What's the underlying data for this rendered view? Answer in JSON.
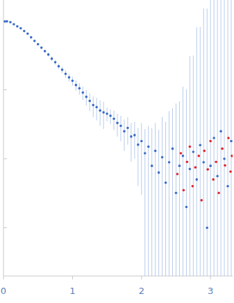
{
  "chart_data": {
    "type": "scatter",
    "xlim": [
      0,
      3.32
    ],
    "xticks": [
      0,
      1,
      2,
      3
    ],
    "ylim": [
      0.0002,
      2
    ],
    "yticks": [
      1,
      0.1,
      0.01,
      0.001
    ],
    "log": "y",
    "tick_labels": "x",
    "marker": "circle",
    "series": [
      {
        "color": "#3b6cc8",
        "x": [
          0.02,
          0.05,
          0.1,
          0.15,
          0.2,
          0.25,
          0.3,
          0.35,
          0.4,
          0.45,
          0.5,
          0.55,
          0.6,
          0.65,
          0.7,
          0.75,
          0.8,
          0.85,
          0.9,
          0.95,
          1.0,
          1.05,
          1.1,
          1.15,
          1.2,
          1.25,
          1.3,
          1.35,
          1.4,
          1.45,
          1.5,
          1.55,
          1.6,
          1.65,
          1.7,
          1.75,
          1.8,
          1.85,
          1.9,
          1.95,
          2.0,
          2.05,
          2.1,
          2.15,
          2.2,
          2.25,
          2.3,
          2.35,
          2.4,
          2.45,
          2.5,
          2.55,
          2.6,
          2.65,
          2.7,
          2.75,
          2.8,
          2.85,
          2.9,
          2.95,
          3.0,
          3.05,
          3.1,
          3.15,
          3.2,
          3.25,
          3.3
        ],
        "values": [
          0.977,
          0.98,
          0.955,
          0.89,
          0.83,
          0.78,
          0.71,
          0.65,
          0.575,
          0.51,
          0.457,
          0.407,
          0.363,
          0.324,
          0.282,
          0.251,
          0.219,
          0.195,
          0.17,
          0.151,
          0.135,
          0.117,
          0.105,
          0.091,
          0.079,
          0.069,
          0.06,
          0.056,
          0.05,
          0.047,
          0.045,
          0.042,
          0.038,
          0.033,
          0.03,
          0.025,
          0.028,
          0.021,
          0.022,
          0.016,
          0.018,
          0.012,
          0.015,
          0.0079,
          0.013,
          0.0063,
          0.0105,
          0.0045,
          0.0089,
          0.014,
          0.0032,
          0.0079,
          0.011,
          0.002,
          0.0071,
          0.0126,
          0.005,
          0.0158,
          0.0089,
          0.001,
          0.0079,
          0.02,
          0.0056,
          0.025,
          0.01,
          0.004,
          0.018
        ],
        "errors": [
          0.02,
          0.02,
          0.02,
          0.02,
          0.02,
          0.02,
          0.02,
          0.02,
          0.02,
          0.02,
          0.02,
          0.02,
          0.02,
          0.02,
          0.02,
          0.02,
          0.02,
          0.02,
          0.02,
          0.02,
          0.02,
          0.02,
          0.02,
          0.02,
          0.02,
          0.02,
          0.02,
          0.02,
          0.02,
          0.02,
          0.01,
          0.01,
          0.012,
          0.012,
          0.012,
          0.012,
          0.012,
          0.012,
          0.012,
          0.012,
          0.015,
          0.015,
          0.015,
          0.02,
          0.02,
          0.02,
          0.03,
          0.03,
          0.04,
          0.04,
          0.06,
          0.06,
          0.1,
          0.1,
          0.3,
          0.3,
          0.8,
          0.8,
          1.5,
          1.5,
          2,
          2,
          2,
          2,
          2,
          2,
          2
        ]
      },
      {
        "color": "#e3242b",
        "x": [
          2.52,
          2.57,
          2.61,
          2.66,
          2.7,
          2.74,
          2.78,
          2.83,
          2.87,
          2.91,
          2.96,
          3.0,
          3.04,
          3.08,
          3.12,
          3.17,
          3.21,
          3.26,
          3.29,
          3.31
        ],
        "values": [
          0.006,
          0.012,
          0.0035,
          0.009,
          0.015,
          0.004,
          0.0075,
          0.011,
          0.0025,
          0.013,
          0.007,
          0.018,
          0.005,
          0.009,
          0.0032,
          0.014,
          0.008,
          0.02,
          0.0065,
          0.011
        ]
      }
    ]
  }
}
